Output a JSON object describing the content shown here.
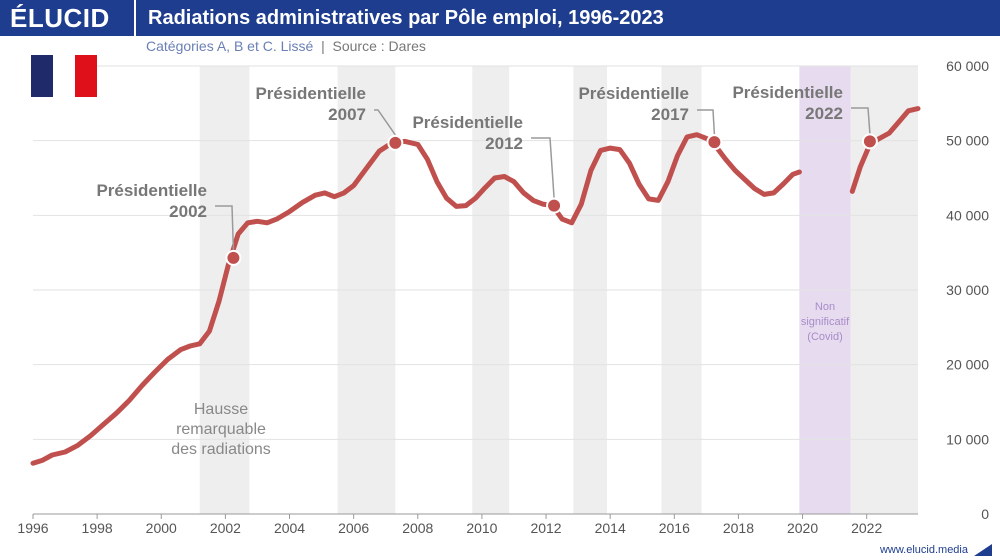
{
  "header": {
    "logo": "ÉLUCID",
    "title": "Radiations administratives par Pôle emploi, 1996-2023",
    "subtitle_main": "Catégories A, B et C. Lissé",
    "subtitle_sep": "|",
    "subtitle_source": "Source : Dares"
  },
  "flag_colors": [
    "#1f2a6b",
    "#ffffff",
    "#e0101a"
  ],
  "footer": {
    "url": "www.elucid.media"
  },
  "colors": {
    "line": "#c0504d",
    "shade": "#eeeeee",
    "covid": "#e7dcef",
    "covid_text": "#a88bc9",
    "axis_text": "#555555",
    "annotation": "#777777"
  },
  "chart_data": {
    "type": "line",
    "title": "Radiations administratives par Pôle emploi, 1996-2023",
    "xlim": [
      1996,
      2023.6
    ],
    "ylim": [
      0,
      60000
    ],
    "x_ticks": [
      1996,
      1998,
      2000,
      2002,
      2004,
      2006,
      2008,
      2010,
      2012,
      2014,
      2016,
      2018,
      2020,
      2022
    ],
    "y_ticks": [
      0,
      10000,
      20000,
      30000,
      40000,
      50000,
      60000
    ],
    "y_tick_labels": [
      "0",
      "10 000",
      "20 000",
      "30 000",
      "40 000",
      "50 000",
      "60 000"
    ],
    "grid": true,
    "shaded_periods": [
      [
        2001.2,
        2002.75
      ],
      [
        2005.5,
        2007.3
      ],
      [
        2009.7,
        2010.85
      ],
      [
        2012.85,
        2013.9
      ],
      [
        2015.6,
        2016.85
      ],
      [
        2021.5,
        2023.6
      ]
    ],
    "covid_period": [
      2019.9,
      2021.5
    ],
    "covid_label": [
      "Non",
      "significatif",
      "(Covid)"
    ],
    "series": [
      {
        "values": [
          [
            1996.0,
            6800
          ],
          [
            1996.3,
            7200
          ],
          [
            1996.6,
            7900
          ],
          [
            1997.0,
            8300
          ],
          [
            1997.4,
            9200
          ],
          [
            1997.8,
            10500
          ],
          [
            1998.2,
            12000
          ],
          [
            1998.6,
            13500
          ],
          [
            1999.0,
            15200
          ],
          [
            1999.4,
            17200
          ],
          [
            1999.8,
            19000
          ],
          [
            2000.2,
            20700
          ],
          [
            2000.6,
            22000
          ],
          [
            2000.9,
            22500
          ],
          [
            2001.2,
            22800
          ],
          [
            2001.5,
            24500
          ],
          [
            2001.8,
            28500
          ],
          [
            2002.1,
            33500
          ],
          [
            2002.4,
            37500
          ],
          [
            2002.7,
            39000
          ],
          [
            2003.0,
            39200
          ],
          [
            2003.3,
            39000
          ],
          [
            2003.6,
            39500
          ],
          [
            2004.0,
            40500
          ],
          [
            2004.4,
            41700
          ],
          [
            2004.8,
            42700
          ],
          [
            2005.1,
            43000
          ],
          [
            2005.4,
            42500
          ],
          [
            2005.7,
            43000
          ],
          [
            2006.0,
            44000
          ],
          [
            2006.4,
            46300
          ],
          [
            2006.8,
            48600
          ],
          [
            2007.2,
            49700
          ],
          [
            2007.6,
            49900
          ],
          [
            2008.0,
            49500
          ],
          [
            2008.3,
            47500
          ],
          [
            2008.6,
            44500
          ],
          [
            2008.9,
            42300
          ],
          [
            2009.2,
            41200
          ],
          [
            2009.5,
            41300
          ],
          [
            2009.8,
            42300
          ],
          [
            2010.1,
            43700
          ],
          [
            2010.4,
            45000
          ],
          [
            2010.7,
            45200
          ],
          [
            2011.0,
            44500
          ],
          [
            2011.3,
            43000
          ],
          [
            2011.6,
            42000
          ],
          [
            2011.9,
            41500
          ],
          [
            2012.2,
            41300
          ],
          [
            2012.5,
            39500
          ],
          [
            2012.8,
            39000
          ],
          [
            2013.1,
            41500
          ],
          [
            2013.4,
            46000
          ],
          [
            2013.7,
            48700
          ],
          [
            2014.0,
            49000
          ],
          [
            2014.3,
            48800
          ],
          [
            2014.6,
            47000
          ],
          [
            2014.9,
            44200
          ],
          [
            2015.2,
            42200
          ],
          [
            2015.5,
            42000
          ],
          [
            2015.8,
            44500
          ],
          [
            2016.1,
            48000
          ],
          [
            2016.4,
            50500
          ],
          [
            2016.7,
            50800
          ],
          [
            2017.0,
            50300
          ],
          [
            2017.3,
            49200
          ],
          [
            2017.6,
            47500
          ],
          [
            2017.9,
            46000
          ],
          [
            2018.2,
            44800
          ],
          [
            2018.5,
            43600
          ],
          [
            2018.8,
            42800
          ],
          [
            2019.1,
            43000
          ],
          [
            2019.4,
            44200
          ],
          [
            2019.7,
            45500
          ],
          [
            2019.9,
            45800
          ]
        ]
      },
      {
        "values": [
          [
            2021.55,
            43200
          ],
          [
            2021.8,
            46500
          ],
          [
            2022.1,
            49500
          ],
          [
            2022.4,
            50300
          ],
          [
            2022.7,
            51000
          ],
          [
            2023.0,
            52500
          ],
          [
            2023.3,
            54000
          ],
          [
            2023.6,
            54300
          ]
        ]
      }
    ],
    "markers": [
      {
        "x": 2002.25,
        "y": 34300,
        "label": [
          "Présidentielle",
          "2002"
        ]
      },
      {
        "x": 2007.3,
        "y": 49700,
        "label": [
          "Présidentielle",
          "2007"
        ]
      },
      {
        "x": 2012.25,
        "y": 41300,
        "label": [
          "Présidentielle",
          "2012"
        ]
      },
      {
        "x": 2017.25,
        "y": 49800,
        "label": [
          "Présidentielle",
          "2017"
        ]
      },
      {
        "x": 2022.1,
        "y": 49900,
        "label": [
          "Présidentielle",
          "2022"
        ]
      }
    ],
    "annotation": [
      "Hausse",
      "remarquable",
      "des radiations"
    ]
  }
}
